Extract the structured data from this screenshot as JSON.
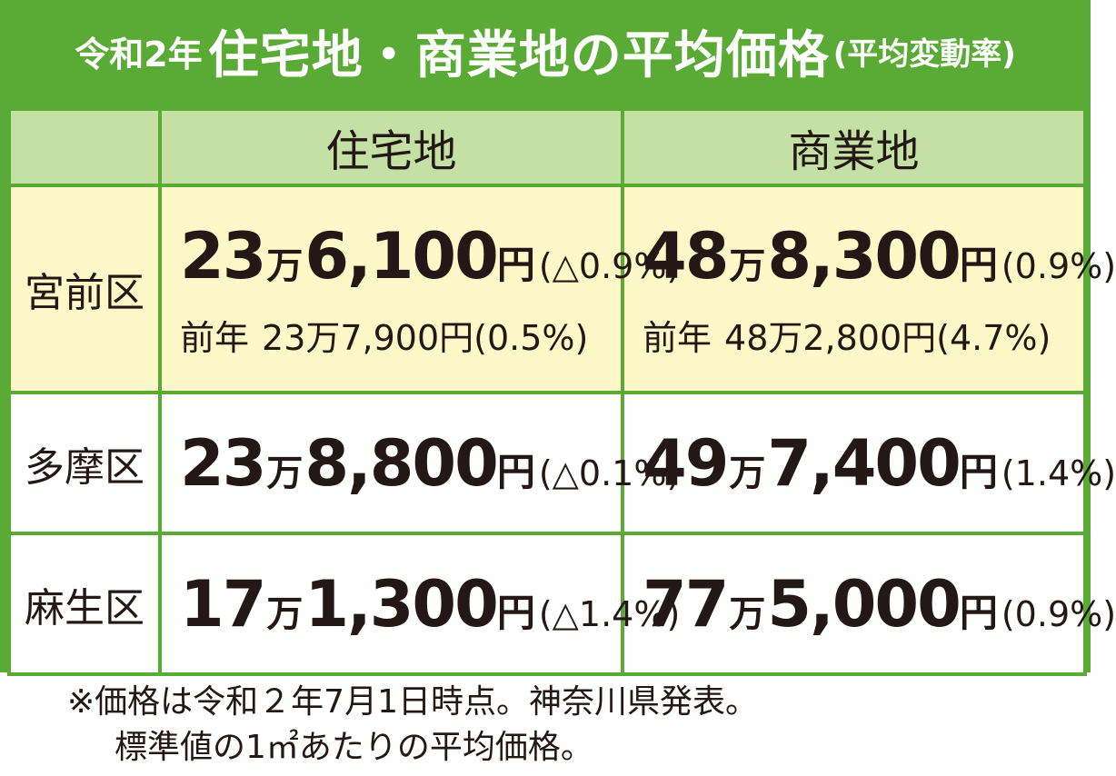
{
  "title": {
    "prefix": "令和2年",
    "main": "住宅地・商業地の平均価格",
    "suffix": "(平均変動率)"
  },
  "table": {
    "headers": [
      "住宅地",
      "商業地"
    ],
    "rows": [
      {
        "ward": "宮前区",
        "residential": {
          "man": "23",
          "rest": "6,100",
          "rate": "(△0.9%)",
          "prev_label": "前年",
          "prev": "23万7,900円(0.5%)"
        },
        "commercial": {
          "man": "48",
          "rest": "8,300",
          "rate": "(0.9%)",
          "prev_label": "前年",
          "prev": "48万2,800円(4.7%)"
        }
      },
      {
        "ward": "多摩区",
        "residential": {
          "man": "23",
          "rest": "8,800",
          "rate": "(△0.1%)"
        },
        "commercial": {
          "man": "49",
          "rest": "7,400",
          "rate": "(1.4%)"
        }
      },
      {
        "ward": "麻生区",
        "residential": {
          "man": "17",
          "rest": "1,300",
          "rate": "(△1.4%)"
        },
        "commercial": {
          "man": "77",
          "rest": "5,000",
          "rate": "(0.9%)"
        }
      }
    ],
    "unit_man": "万",
    "unit_yen": "円"
  },
  "note": {
    "line1": "※価格は令和２年7月1日時点。神奈川県発表。",
    "line2": "標準値の1㎡あたりの平均価格。"
  },
  "colors": {
    "frame_green": "#5aab35",
    "header_green": "#c5e0a5",
    "highlight_yellow": "#fdf8c8"
  }
}
